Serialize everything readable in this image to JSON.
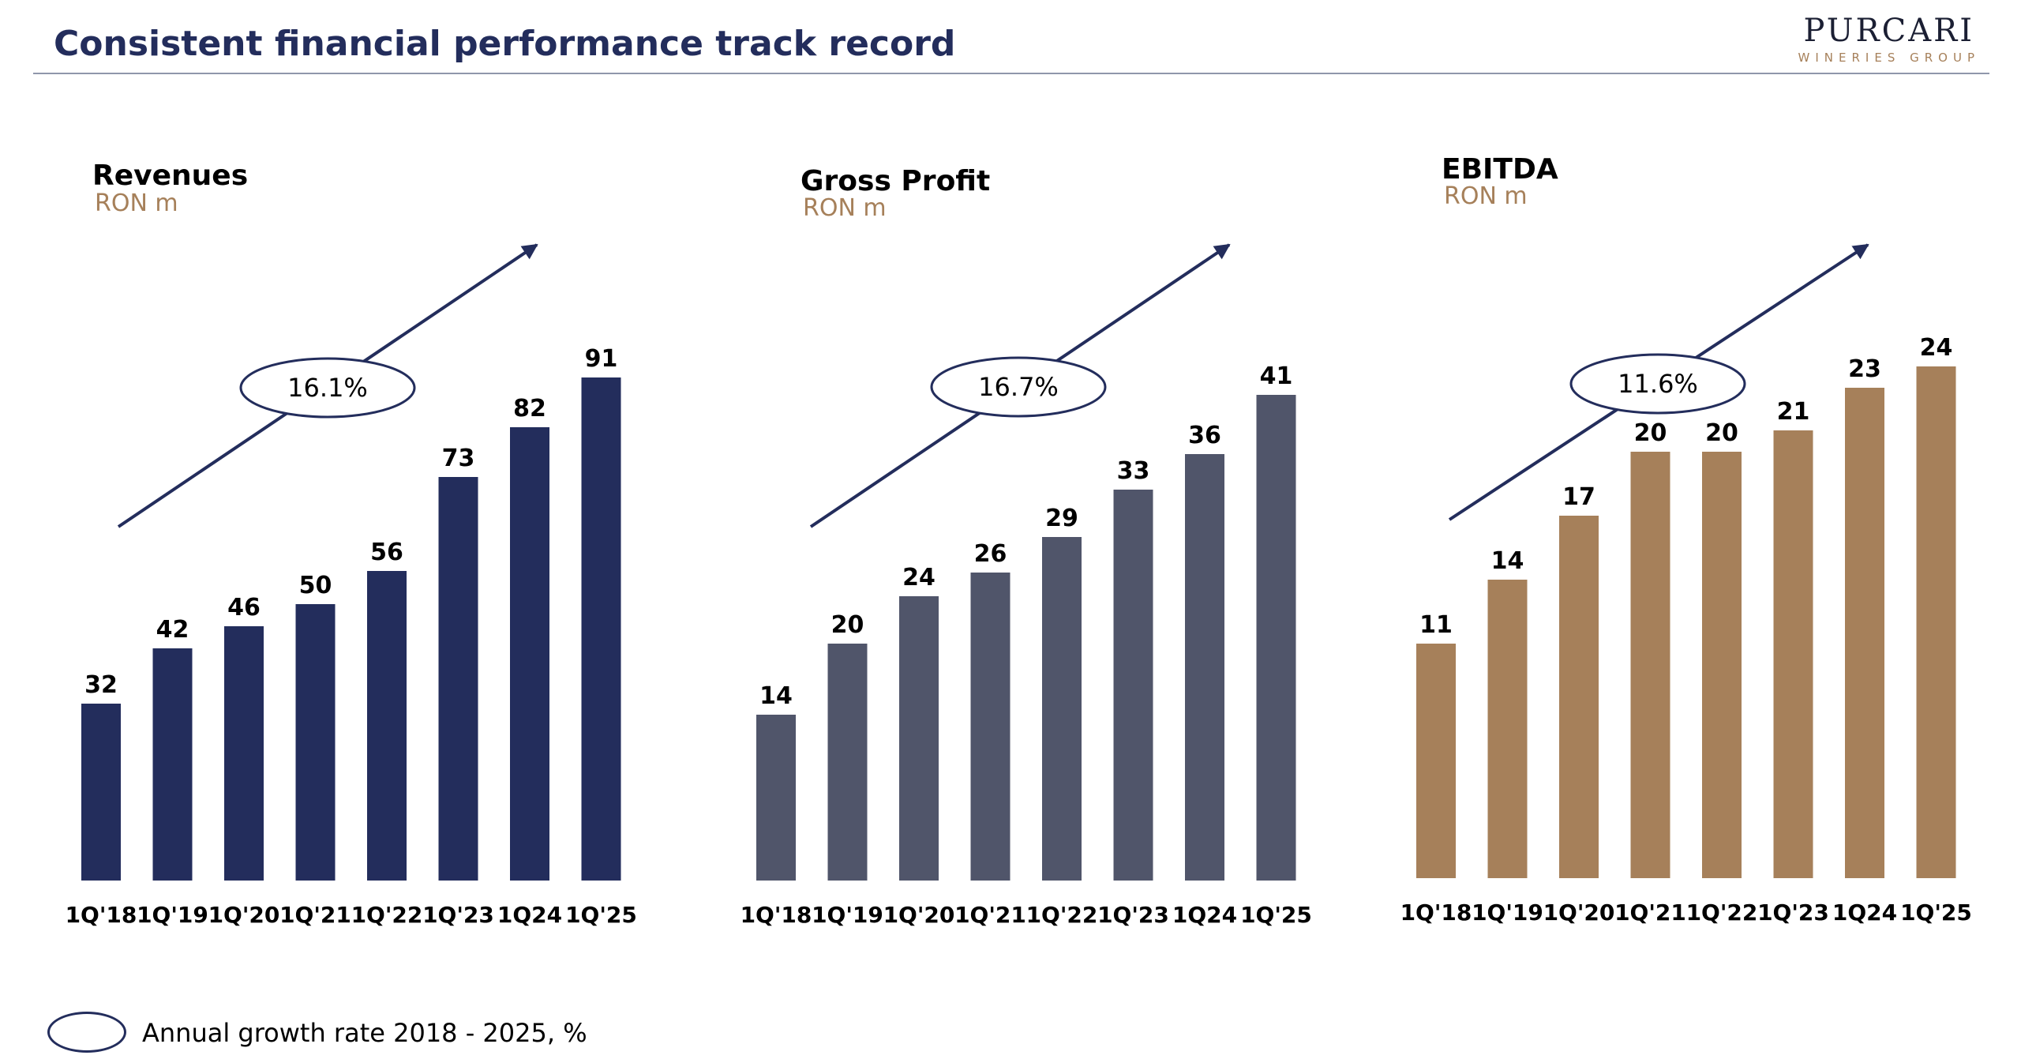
{
  "header": {
    "title": "Consistent financial performance track record",
    "logo_main": "PURCARI",
    "logo_sub": "WINERIES GROUP"
  },
  "legend": {
    "label": "Annual growth rate 2018 - 2025, %"
  },
  "colors": {
    "navy": "#232d5c",
    "slate": "#50556a",
    "gold": "#a6805a"
  },
  "chart_data": [
    {
      "type": "bar",
      "title": "Revenues",
      "unit": "RON m",
      "categories": [
        "1Q'18",
        "1Q'19",
        "1Q'20",
        "1Q'21",
        "1Q'22",
        "1Q'23",
        "1Q24",
        "1Q'25"
      ],
      "values": [
        32,
        42,
        46,
        50,
        56,
        73,
        82,
        91
      ],
      "growth_rate": "16.1%",
      "color": "#232d5c",
      "ylim": [
        0,
        100
      ]
    },
    {
      "type": "bar",
      "title": "Gross Profit",
      "unit": "RON m",
      "categories": [
        "1Q'18",
        "1Q'19",
        "1Q'20",
        "1Q'21",
        "1Q'22",
        "1Q'23",
        "1Q24",
        "1Q'25"
      ],
      "values": [
        14,
        20,
        24,
        26,
        29,
        33,
        36,
        41
      ],
      "growth_rate": "16.7%",
      "color": "#50556a",
      "ylim": [
        0,
        100
      ]
    },
    {
      "type": "bar",
      "title": "EBITDA",
      "unit": "RON m",
      "categories": [
        "1Q'18",
        "1Q'19",
        "1Q'20",
        "1Q'21",
        "1Q'22",
        "1Q'23",
        "1Q24",
        "1Q'25"
      ],
      "values": [
        11,
        14,
        17,
        20,
        20,
        21,
        23,
        24
      ],
      "growth_rate": "11.6%",
      "color": "#a6805a",
      "ylim": [
        0,
        100
      ]
    }
  ]
}
